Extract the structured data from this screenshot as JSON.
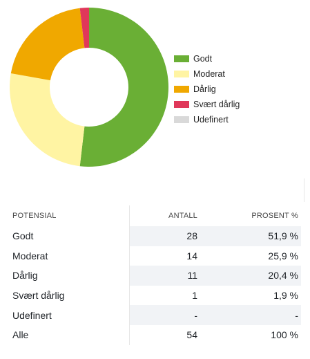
{
  "chart_data": {
    "type": "pie",
    "categories": [
      "Godt",
      "Moderat",
      "Dårlig",
      "Svært dårlig",
      "Udefinert"
    ],
    "values": [
      28,
      14,
      11,
      1,
      0
    ],
    "colors": [
      "#6aaf35",
      "#fff4a3",
      "#f0a800",
      "#e0385a",
      "#d9d9d9"
    ],
    "legend_position": "right"
  },
  "legend": {
    "items": [
      {
        "label": "Godt",
        "color": "#6aaf35"
      },
      {
        "label": "Moderat",
        "color": "#fff4a3"
      },
      {
        "label": "Dårlig",
        "color": "#f0a800"
      },
      {
        "label": "Svært dårlig",
        "color": "#e0385a"
      },
      {
        "label": "Udefinert",
        "color": "#d9d9d9"
      }
    ]
  },
  "table": {
    "headers": {
      "name": "POTENSIAL",
      "count": "ANTALL",
      "pct": "PROSENT %"
    },
    "rows": [
      {
        "name": "Godt",
        "count": "28",
        "pct": "51,9 %"
      },
      {
        "name": "Moderat",
        "count": "14",
        "pct": "25,9 %"
      },
      {
        "name": "Dårlig",
        "count": "11",
        "pct": "20,4 %"
      },
      {
        "name": "Svært dårlig",
        "count": "1",
        "pct": "1,9 %"
      },
      {
        "name": "Udefinert",
        "count": "-",
        "pct": "-"
      },
      {
        "name": "Alle",
        "count": "54",
        "pct": "100 %"
      }
    ]
  }
}
